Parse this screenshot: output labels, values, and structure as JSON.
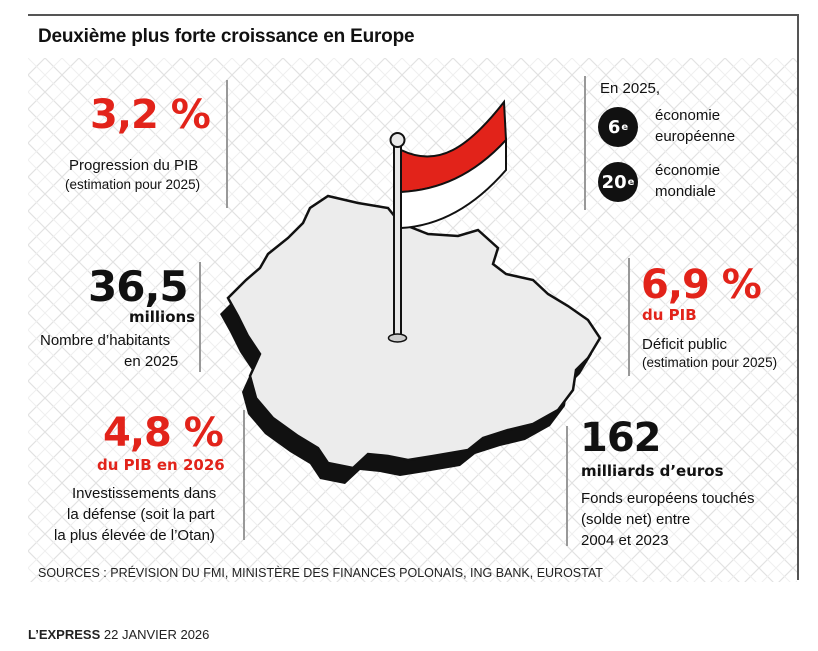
{
  "title": "Deuxième plus forte croissance en Europe",
  "stats": {
    "gdp_growth": {
      "value": "3,2 %",
      "label": "Progression du PIB",
      "note": "(estimation pour 2025)"
    },
    "population": {
      "value": "36,5",
      "unit": "millions",
      "label_line1": "Nombre d’habitants",
      "label_line2": "en 2025"
    },
    "defense": {
      "value": "4,8 %",
      "unit": "du PIB en 2026",
      "line1": "Investissements dans",
      "line2": "la défense (soit la part",
      "line3": "la plus élevée de l’Otan)"
    },
    "ranking": {
      "intro": "En 2025,",
      "rank1": {
        "number": "6",
        "suffix": "e",
        "line1": "économie",
        "line2": "européenne"
      },
      "rank2": {
        "number": "20",
        "suffix": "e",
        "line1": "économie",
        "line2": "mondiale"
      }
    },
    "deficit": {
      "value": "6,9 %",
      "unit": "du PIB",
      "label": "Déficit public",
      "note": "(estimation pour 2025)"
    },
    "eu_funds": {
      "value": "162",
      "unit": "milliards d’euros",
      "line1": "Fonds européens touchés",
      "line2": "(solde net) entre",
      "line3": "2004 et 2023"
    }
  },
  "sources": "SOURCES : PRÉVISION DU FMI, MINISTÈRE DES FINANCES POLONAIS, ING BANK, EUROSTAT",
  "footer": {
    "brand": "L’EXPRESS",
    "date": "22 JANVIER 2026"
  },
  "colors": {
    "accent_red": "#e2231a",
    "text": "#111111",
    "map_fill": "#ececec"
  }
}
